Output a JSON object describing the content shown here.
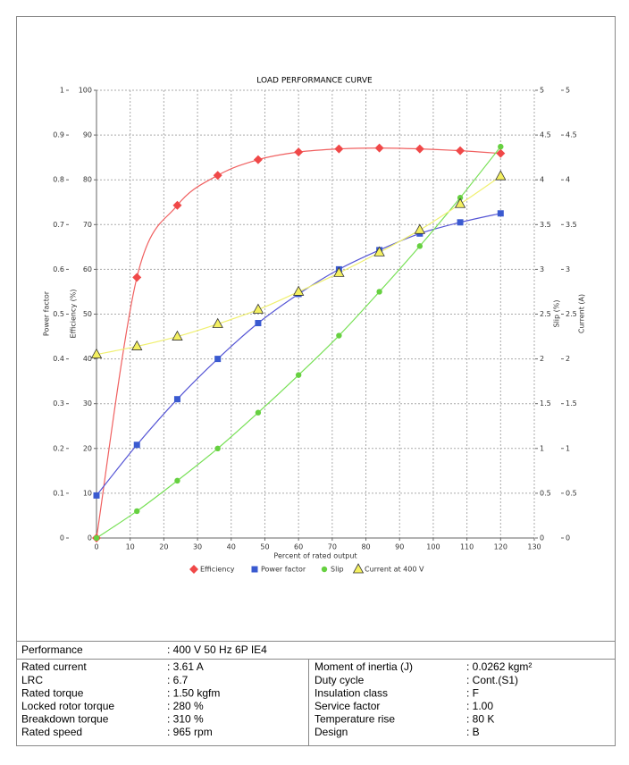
{
  "chart_data": {
    "type": "line",
    "title": "LOAD PERFORMANCE CURVE",
    "xlabel": "Percent of rated output",
    "x": [
      0,
      12,
      24,
      36,
      48,
      60,
      72,
      84,
      96,
      108,
      120
    ],
    "xlim": [
      0,
      130
    ],
    "xticks": [
      0,
      10,
      20,
      30,
      40,
      50,
      60,
      70,
      80,
      90,
      100,
      110,
      120,
      130
    ],
    "axes": [
      {
        "label": "Power factor",
        "side": "left",
        "lim": [
          0,
          1
        ],
        "ticks": [
          0,
          0.1,
          0.2,
          0.3,
          0.4,
          0.5,
          0.6,
          0.7,
          0.8,
          0.9,
          1
        ]
      },
      {
        "label": "Efficiency (%)",
        "side": "left",
        "lim": [
          0,
          100
        ],
        "ticks": [
          0,
          10,
          20,
          30,
          40,
          50,
          60,
          70,
          80,
          90,
          100
        ]
      },
      {
        "label": "Slip (%)",
        "side": "right",
        "lim": [
          0,
          5
        ],
        "ticks": [
          0,
          0.5,
          1,
          1.5,
          2,
          2.5,
          3,
          3.5,
          4,
          4.5,
          5
        ]
      },
      {
        "label": "Current (A)",
        "side": "right",
        "lim": [
          0,
          5
        ],
        "ticks": [
          0,
          0.5,
          1,
          1.5,
          2,
          2.5,
          3,
          3.5,
          4,
          4.5,
          5
        ]
      }
    ],
    "grid": true,
    "legend": "bottom",
    "series": [
      {
        "name": "Efficiency",
        "axis": 1,
        "marker": "diamond",
        "color": "#f04848",
        "line_color": "#f06060",
        "values": [
          0,
          58.2,
          74.3,
          81,
          84.5,
          86.2,
          86.9,
          87.1,
          86.9,
          86.5,
          85.9
        ]
      },
      {
        "name": "Power factor",
        "axis": 0,
        "marker": "square",
        "color": "#3a5ad0",
        "line_color": "#5555d5",
        "values": [
          0.095,
          0.208,
          0.31,
          0.4,
          0.48,
          0.545,
          0.6,
          0.643,
          0.68,
          0.705,
          0.725
        ]
      },
      {
        "name": "Slip",
        "axis": 2,
        "marker": "circle",
        "color": "#66d040",
        "line_color": "#77e055",
        "values": [
          0,
          0.3,
          0.64,
          1,
          1.4,
          1.82,
          2.26,
          2.75,
          3.26,
          3.8,
          4.37
        ]
      },
      {
        "name": "Current at 400 V",
        "axis": 3,
        "marker": "triangle",
        "color": "#f4f060",
        "line_color": "#f0f070",
        "values": [
          2.05,
          2.14,
          2.25,
          2.39,
          2.55,
          2.75,
          2.96,
          3.19,
          3.44,
          3.73,
          4.04
        ]
      }
    ]
  },
  "table": {
    "header": [
      "Performance",
      ": 400 V 50 Hz 6P IE4"
    ],
    "rows": [
      [
        "Rated current",
        ": 3.61 A",
        "Moment of inertia (J)",
        ": 0.0262 kgm²"
      ],
      [
        "LRC",
        ": 6.7",
        "Duty cycle",
        ": Cont.(S1)"
      ],
      [
        "Rated torque",
        ": 1.50 kgfm",
        "Insulation class",
        ": F"
      ],
      [
        "Locked rotor torque",
        ": 280 %",
        "Service factor",
        ": 1.00"
      ],
      [
        "Breakdown torque",
        ": 310 %",
        "Temperature rise",
        ": 80 K"
      ],
      [
        "Rated speed",
        ": 965 rpm",
        "Design",
        ": B"
      ]
    ]
  }
}
